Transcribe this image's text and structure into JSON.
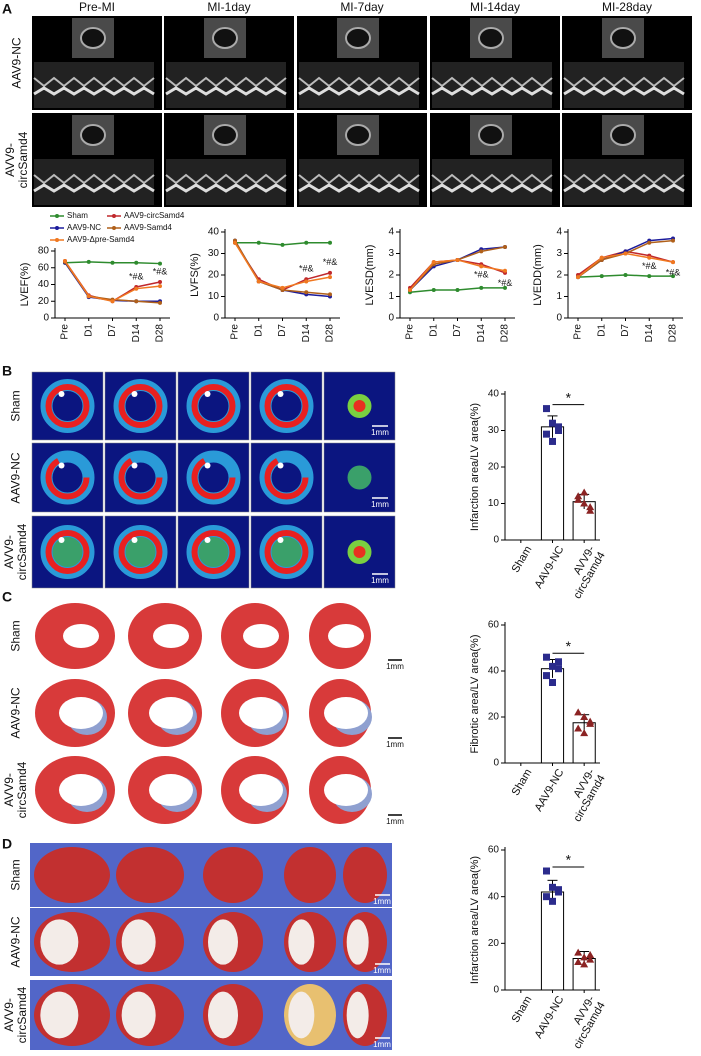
{
  "panel_labels": [
    "A",
    "B",
    "C",
    "D"
  ],
  "echo": {
    "columns": [
      "Pre-MI",
      "MI-1day",
      "MI-7day",
      "MI-14day",
      "MI-28day"
    ],
    "rows": [
      "AAV9-NC",
      "AVV9-\ncircSamd4"
    ]
  },
  "images_b": {
    "rows": [
      "Sham",
      "AAV9-NC",
      "AVV9-\ncircSamd4"
    ],
    "scale_bar": "1mm"
  },
  "images_c": {
    "rows": [
      "Sham",
      "AAV9-NC",
      "AVV9-\ncircSamd4"
    ],
    "scale_bar": "1mm"
  },
  "images_d": {
    "rows": [
      "Sham",
      "AAV9-NC",
      "AVV9-\ncircSamd4"
    ],
    "scale_bar": "1mm"
  },
  "chart_data": [
    {
      "type": "line",
      "ylabel": "LVEF(%)",
      "categories": [
        "Pre",
        "D1",
        "D7",
        "D14",
        "D28"
      ],
      "ylim": [
        0,
        80
      ],
      "yticks": [
        0,
        20,
        40,
        60,
        80
      ],
      "legend": "top-left",
      "annotations": [
        "*#&",
        "*#&"
      ],
      "series": [
        {
          "name": "Sham",
          "color": "#2e8b2e",
          "values": [
            66,
            67,
            66,
            66,
            65
          ]
        },
        {
          "name": "AAV9-circSamd4",
          "color": "#c0282c",
          "values": [
            68,
            27,
            20,
            37,
            43
          ]
        },
        {
          "name": "AAV9-NC",
          "color": "#1c1c9c",
          "values": [
            66,
            25,
            21,
            20,
            20
          ]
        },
        {
          "name": "AAV9-Samd4",
          "color": "#b0601a",
          "values": [
            67,
            26,
            22,
            20,
            18
          ]
        },
        {
          "name": "AAV9-Δpre-Samd4",
          "color": "#f07820",
          "values": [
            68,
            26,
            20,
            35,
            38
          ]
        }
      ]
    },
    {
      "type": "line",
      "ylabel": "LVFS(%)",
      "categories": [
        "Pre",
        "D1",
        "D7",
        "D14",
        "D28"
      ],
      "ylim": [
        0,
        40
      ],
      "yticks": [
        0,
        10,
        20,
        30,
        40
      ],
      "annotations": [
        "*#&",
        "*#&"
      ],
      "series": [
        {
          "color": "#2e8b2e",
          "values": [
            35,
            35,
            34,
            35,
            35
          ]
        },
        {
          "color": "#c0282c",
          "values": [
            35,
            18,
            13,
            18,
            21
          ]
        },
        {
          "color": "#1c1c9c",
          "values": [
            36,
            17,
            13,
            11,
            10
          ]
        },
        {
          "color": "#b0601a",
          "values": [
            36,
            17,
            13,
            12,
            11
          ]
        },
        {
          "color": "#f07820",
          "values": [
            35,
            17,
            14,
            17,
            19
          ]
        }
      ]
    },
    {
      "type": "line",
      "ylabel": "LVESD(mm)",
      "categories": [
        "Pre",
        "D1",
        "D7",
        "D14",
        "D28"
      ],
      "ylim": [
        0,
        4
      ],
      "yticks": [
        0,
        1,
        2,
        3,
        4
      ],
      "annotations": [
        "*#&",
        "*#&"
      ],
      "series": [
        {
          "color": "#2e8b2e",
          "values": [
            1.2,
            1.3,
            1.3,
            1.4,
            1.4
          ]
        },
        {
          "color": "#c0282c",
          "values": [
            1.4,
            2.6,
            2.7,
            2.5,
            2.1
          ]
        },
        {
          "color": "#1c1c9c",
          "values": [
            1.3,
            2.4,
            2.7,
            3.2,
            3.3
          ]
        },
        {
          "color": "#b0601a",
          "values": [
            1.3,
            2.5,
            2.7,
            3.1,
            3.3
          ]
        },
        {
          "color": "#f07820",
          "values": [
            1.3,
            2.6,
            2.7,
            2.4,
            2.2
          ]
        }
      ]
    },
    {
      "type": "line",
      "ylabel": "LVEDD(mm)",
      "categories": [
        "Pre",
        "D1",
        "D7",
        "D14",
        "D28"
      ],
      "ylim": [
        0,
        4
      ],
      "yticks": [
        0,
        1,
        2,
        3,
        4
      ],
      "annotations": [
        "*#&",
        "*#&"
      ],
      "series": [
        {
          "color": "#2e8b2e",
          "values": [
            1.9,
            1.95,
            2.0,
            1.95,
            1.95
          ]
        },
        {
          "color": "#c0282c",
          "values": [
            2.0,
            2.8,
            3.1,
            2.9,
            2.6
          ]
        },
        {
          "color": "#1c1c9c",
          "values": [
            1.9,
            2.7,
            3.1,
            3.6,
            3.7
          ]
        },
        {
          "color": "#b0601a",
          "values": [
            1.9,
            2.7,
            3.0,
            3.5,
            3.6
          ]
        },
        {
          "color": "#f07820",
          "values": [
            1.9,
            2.8,
            3.0,
            2.8,
            2.6
          ]
        }
      ]
    },
    {
      "type": "bar",
      "ylabel": "Infarction area/LV area(%)",
      "categories": [
        "Sham",
        "AAV9-NC",
        "AVV9-\ncircSamd4"
      ],
      "values": [
        null,
        31,
        10.5
      ],
      "errors": [
        null,
        3,
        2
      ],
      "color": "#ffffff",
      "points": [
        [],
        [
          36,
          32,
          30,
          29,
          27,
          31
        ],
        [
          12,
          10,
          9,
          11,
          13,
          8
        ]
      ],
      "point_colors": [
        "#2b2b8c",
        "#2b2b8c",
        "#8b2323"
      ],
      "point_markers": [
        "square",
        "square",
        "triangle"
      ],
      "ylim": [
        0,
        40
      ],
      "yticks": [
        0,
        10,
        20,
        30,
        40
      ],
      "significance": "*"
    },
    {
      "type": "bar",
      "ylabel": "Fibrotic area/LV area(%)",
      "categories": [
        "Sham",
        "AAV9-NC",
        "AVV9-\ncircSamd4"
      ],
      "values": [
        null,
        41,
        17.5
      ],
      "errors": [
        null,
        4,
        3.5
      ],
      "color": "#ffffff",
      "points": [
        [],
        [
          46,
          42,
          41,
          38,
          35,
          44
        ],
        [
          22,
          20,
          17,
          15,
          13,
          18
        ]
      ],
      "point_colors": [
        "#2b2b8c",
        "#2b2b8c",
        "#8b2323"
      ],
      "point_markers": [
        "square",
        "square",
        "triangle"
      ],
      "ylim": [
        0,
        60
      ],
      "yticks": [
        0,
        20,
        40,
        60
      ],
      "significance": "*"
    },
    {
      "type": "bar",
      "ylabel": "Infarction area/LV area(%)",
      "categories": [
        "Sham",
        "AAV9-NC",
        "AVV9-\ncircSamd4"
      ],
      "values": [
        null,
        42,
        13.5
      ],
      "errors": [
        null,
        5,
        3
      ],
      "color": "#ffffff",
      "points": [
        [],
        [
          51,
          44,
          42,
          40,
          38,
          43
        ],
        [
          16,
          14,
          13,
          12,
          11,
          15
        ]
      ],
      "point_colors": [
        "#2b2b8c",
        "#2b2b8c",
        "#8b2323"
      ],
      "point_markers": [
        "square",
        "square",
        "triangle"
      ],
      "ylim": [
        0,
        60
      ],
      "yticks": [
        0,
        20,
        40,
        60
      ],
      "significance": "*"
    }
  ]
}
